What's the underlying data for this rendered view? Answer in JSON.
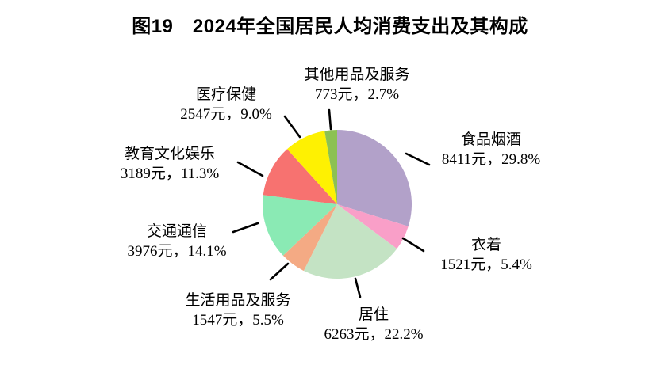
{
  "title": "图19　2024年全国居民人均消费支出及其构成",
  "chart_data": {
    "type": "pie",
    "title": "2024年全国居民人均消费支出及其构成",
    "unit": "元",
    "start_angle_deg": 0,
    "direction": "clockwise",
    "total_value": 28227,
    "slices": [
      {
        "label": "食品烟酒",
        "value": 8411,
        "percent": 29.8,
        "display": "8411元，29.8%",
        "color": "#b2a1c9"
      },
      {
        "label": "衣着",
        "value": 1521,
        "percent": 5.4,
        "display": "1521元，5.4%",
        "color": "#f99fc8"
      },
      {
        "label": "居住",
        "value": 6263,
        "percent": 22.2,
        "display": "6263元，22.2%",
        "color": "#c4e3c4"
      },
      {
        "label": "生活用品及服务",
        "value": 1547,
        "percent": 5.5,
        "display": "1547元，5.5%",
        "color": "#f4aa84"
      },
      {
        "label": "交通通信",
        "value": 3976,
        "percent": 14.1,
        "display": "3976元，14.1%",
        "color": "#8aeab4"
      },
      {
        "label": "教育文化娱乐",
        "value": 3189,
        "percent": 11.3,
        "display": "3189元，11.3%",
        "color": "#f77270"
      },
      {
        "label": "医疗保健",
        "value": 2547,
        "percent": 9.0,
        "display": "2547元，9.0%",
        "color": "#fef102"
      },
      {
        "label": "其他用品及服务",
        "value": 773,
        "percent": 2.7,
        "display": "773元，2.7%",
        "color": "#8cc152"
      }
    ]
  }
}
